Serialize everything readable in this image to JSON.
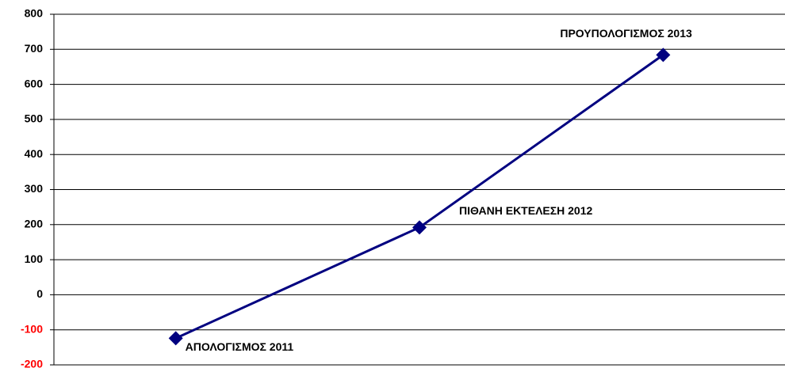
{
  "chart_data": {
    "type": "line",
    "categories": [
      "ΑΠΟΛΟΓΙΣΜΟΣ 2011",
      "ΠΙΘΑΝΗ ΕΚΤΕΛΕΣΗ 2012",
      "ΠΡΟΥΠΟΛΟΓΙΣΜΟΣ 2013"
    ],
    "values": [
      -124,
      192,
      684
    ],
    "color": "#000080",
    "ylim": [
      -200,
      800
    ],
    "yticks": [
      -200,
      -100,
      0,
      100,
      200,
      300,
      400,
      500,
      600,
      700,
      800
    ],
    "negative_tick_color": "#ff0000",
    "grid": true
  }
}
